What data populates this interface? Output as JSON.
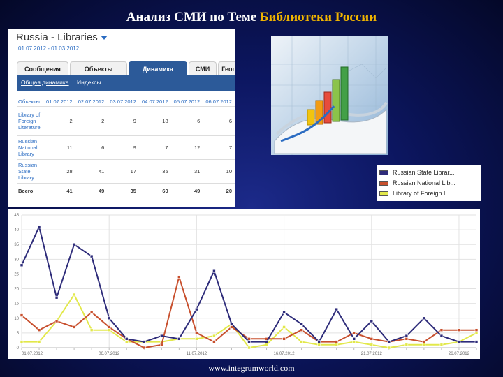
{
  "slide": {
    "title_prefix": "Анализ СМИ по Теме ",
    "title_highlight": "Библиотеки России",
    "footer": "www.integrumworld.com",
    "highlight_color": "#f0b400"
  },
  "app": {
    "title": "Russia - Libraries",
    "date_range": "01.07.2012 - 01.03.2012",
    "tabs": [
      "Сообщения",
      "Объекты",
      "Динамика",
      "СМИ",
      "Геогра"
    ],
    "active_tab": "Динамика",
    "subtabs": [
      "Общая динамика",
      "Индексы"
    ]
  },
  "table": {
    "header_first": "Объекты",
    "columns": [
      "01.07.2012",
      "02.07.2012",
      "03.07.2012",
      "04.07.2012",
      "05.07.2012",
      "06.07.2012"
    ],
    "rows": [
      {
        "label": "Library of Foreign Literature",
        "values": [
          "2",
          "2",
          "9",
          "18",
          "6",
          "6"
        ]
      },
      {
        "label": "Russian National Library",
        "values": [
          "11",
          "6",
          "9",
          "7",
          "12",
          "7"
        ]
      },
      {
        "label": "Russian State Library",
        "values": [
          "28",
          "41",
          "17",
          "35",
          "31",
          "10"
        ]
      }
    ],
    "total": {
      "label": "Всего",
      "values": [
        "41",
        "49",
        "35",
        "60",
        "49",
        "20"
      ]
    }
  },
  "legend": [
    {
      "label": "Russian State Librar...",
      "color": "#2e2c7a"
    },
    {
      "label": "Russian National Lib...",
      "color": "#c8502e"
    },
    {
      "label": "Library of Foreign L...",
      "color": "#e2e84a"
    }
  ],
  "chart_data": {
    "type": "line",
    "ylim": [
      0,
      45
    ],
    "y_ticks": [
      "0",
      "5",
      "10",
      "15",
      "20",
      "25",
      "30",
      "35",
      "40",
      "45"
    ],
    "x_tick_labels": [
      "01.07.2012",
      "06.07.2012",
      "11.07.2012",
      "16.07.2012",
      "21.07.2012",
      "26.07.2012"
    ],
    "x_tick_index": [
      0,
      5,
      10,
      15,
      20,
      25
    ],
    "grid": true,
    "series": [
      {
        "name": "Russian State Librar...",
        "color": "#2e2c7a",
        "values": [
          28,
          41,
          17,
          35,
          31,
          10,
          3,
          2,
          4,
          3,
          13,
          26,
          8,
          2,
          2,
          12,
          8,
          2,
          13,
          3,
          9,
          2,
          4,
          10,
          4,
          2,
          2
        ]
      },
      {
        "name": "Russian National Lib...",
        "color": "#c8502e",
        "values": [
          11,
          6,
          9,
          7,
          12,
          7,
          3,
          0,
          1,
          24,
          5,
          2,
          7,
          3,
          3,
          3,
          6,
          2,
          2,
          5,
          3,
          2,
          3,
          2,
          6,
          6,
          6
        ]
      },
      {
        "name": "Library of Foreign L...",
        "color": "#e2e84a",
        "values": [
          2,
          2,
          9,
          18,
          6,
          6,
          2,
          2,
          2,
          3,
          3,
          4,
          8,
          0,
          1,
          7,
          2,
          1,
          1,
          2,
          1,
          0,
          1,
          1,
          1,
          2,
          5
        ]
      }
    ]
  }
}
